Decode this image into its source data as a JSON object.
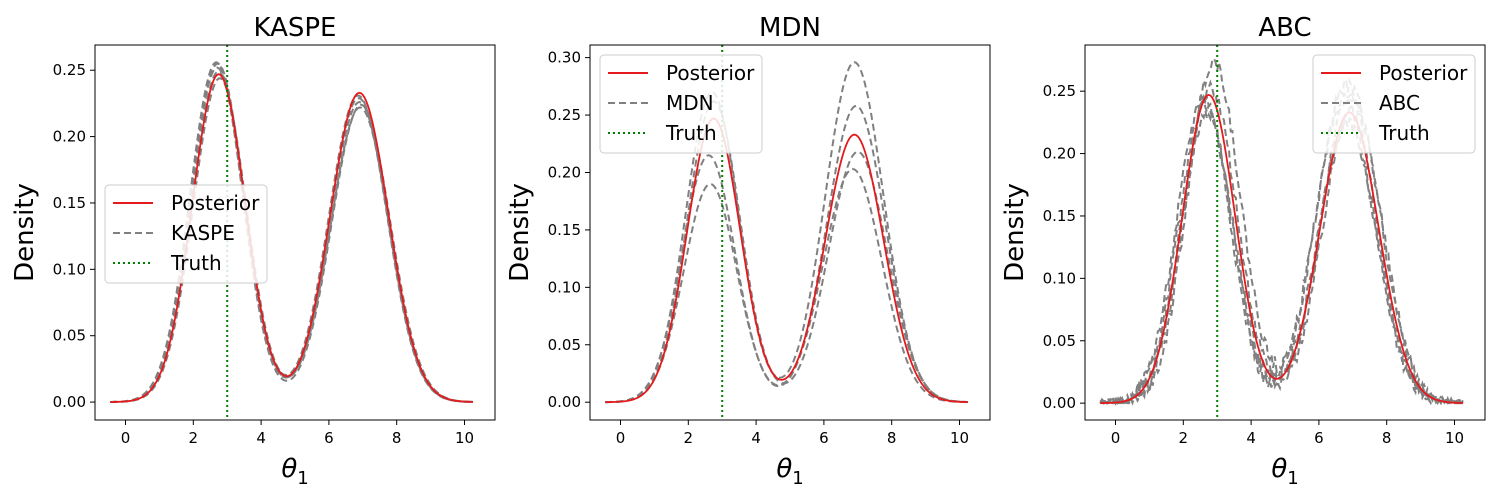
{
  "chart_data": [
    {
      "type": "line",
      "title": "KASPE",
      "xlabel_symbol": "θ",
      "xlabel_subscript": "1",
      "ylabel": "Density",
      "xlim": [
        -0.9,
        10.9
      ],
      "ylim": [
        -0.0135,
        0.269
      ],
      "xticks": [
        0,
        2,
        4,
        6,
        8,
        10
      ],
      "yticks": [
        0.0,
        0.05,
        0.1,
        0.15,
        0.2,
        0.25
      ],
      "ytick_labels": [
        "0.00",
        "0.05",
        "0.10",
        "0.15",
        "0.20",
        "0.25"
      ],
      "truth_x": 3.0,
      "legend": {
        "placement": "center-left",
        "entries": [
          "Posterior",
          "KASPE",
          "Truth"
        ]
      },
      "posterior": {
        "peak1_x": 2.75,
        "peak1_y": 0.247,
        "peak2_x": 6.9,
        "peak2_y": 0.233,
        "dip_x": 4.8,
        "dip_y": 0.022
      },
      "estimates": [
        {
          "peak1_x": 2.72,
          "peak1_y": 0.255,
          "peak2_x": 6.9,
          "peak2_y": 0.226,
          "dip_y": 0.02
        },
        {
          "peak1_x": 2.7,
          "peak1_y": 0.252,
          "peak2_x": 6.88,
          "peak2_y": 0.229,
          "dip_y": 0.024
        },
        {
          "peak1_x": 2.78,
          "peak1_y": 0.244,
          "peak2_x": 6.92,
          "peak2_y": 0.222,
          "dip_y": 0.021
        },
        {
          "peak1_x": 2.68,
          "peak1_y": 0.256,
          "peak2_x": 6.95,
          "peak2_y": 0.224,
          "dip_y": 0.023
        },
        {
          "peak1_x": 2.74,
          "peak1_y": 0.249,
          "peak2_x": 6.86,
          "peak2_y": 0.231,
          "dip_y": 0.019
        }
      ]
    },
    {
      "type": "line",
      "title": "MDN",
      "xlabel_symbol": "θ",
      "xlabel_subscript": "1",
      "ylabel": "Density",
      "xlim": [
        -0.9,
        10.9
      ],
      "ylim": [
        -0.0155,
        0.311
      ],
      "xticks": [
        0,
        2,
        4,
        6,
        8,
        10
      ],
      "yticks": [
        0.0,
        0.05,
        0.1,
        0.15,
        0.2,
        0.25,
        0.3
      ],
      "ytick_labels": [
        "0.00",
        "0.05",
        "0.10",
        "0.15",
        "0.20",
        "0.25",
        "0.30"
      ],
      "truth_x": 3.0,
      "legend": {
        "placement": "top-left",
        "entries": [
          "Posterior",
          "MDN",
          "Truth"
        ]
      },
      "posterior": {
        "peak1_x": 2.75,
        "peak1_y": 0.247,
        "peak2_x": 6.9,
        "peak2_y": 0.233,
        "dip_x": 4.8,
        "dip_y": 0.022
      },
      "estimates": [
        {
          "peak1_x": 2.7,
          "peak1_y": 0.27,
          "peak2_x": 6.9,
          "peak2_y": 0.296,
          "dip_y": 0.018
        },
        {
          "peak1_x": 2.6,
          "peak1_y": 0.215,
          "peak2_x": 6.95,
          "peak2_y": 0.258,
          "dip_y": 0.02
        },
        {
          "peak1_x": 2.65,
          "peak1_y": 0.19,
          "peak2_x": 6.85,
          "peak2_y": 0.203,
          "dip_y": 0.03
        },
        {
          "peak1_x": 2.75,
          "peak1_y": 0.262,
          "peak2_x": 7.0,
          "peak2_y": 0.218,
          "dip_y": 0.024
        }
      ]
    },
    {
      "type": "line",
      "title": "ABC",
      "xlabel_symbol": "θ",
      "xlabel_subscript": "1",
      "ylabel": "Density",
      "xlim": [
        -0.9,
        10.9
      ],
      "ylim": [
        -0.0135,
        0.287
      ],
      "xticks": [
        0,
        2,
        4,
        6,
        8,
        10
      ],
      "yticks": [
        0.0,
        0.05,
        0.1,
        0.15,
        0.2,
        0.25
      ],
      "ytick_labels": [
        "0.00",
        "0.05",
        "0.10",
        "0.15",
        "0.20",
        "0.25"
      ],
      "truth_x": 3.0,
      "legend": {
        "placement": "top-right",
        "entries": [
          "Posterior",
          "ABC",
          "Truth"
        ]
      },
      "posterior": {
        "peak1_x": 2.75,
        "peak1_y": 0.247,
        "peak2_x": 6.9,
        "peak2_y": 0.233,
        "dip_x": 4.8,
        "dip_y": 0.022
      },
      "estimates": [
        {
          "peak1_x": 2.9,
          "peak1_y": 0.274,
          "peak2_x": 6.8,
          "peak2_y": 0.255,
          "dip_y": 0.03
        },
        {
          "peak1_x": 2.6,
          "peak1_y": 0.245,
          "peak2_x": 7.0,
          "peak2_y": 0.24,
          "dip_y": 0.04
        },
        {
          "peak1_x": 2.7,
          "peak1_y": 0.232,
          "peak2_x": 6.85,
          "peak2_y": 0.225,
          "dip_y": 0.015
        },
        {
          "peak1_x": 2.8,
          "peak1_y": 0.252,
          "peak2_x": 6.95,
          "peak2_y": 0.25,
          "dip_y": 0.045
        },
        {
          "peak1_x": 2.65,
          "peak1_y": 0.238,
          "peak2_x": 6.75,
          "peak2_y": 0.245,
          "dip_y": 0.028
        }
      ]
    }
  ],
  "colors": {
    "posterior": "#e41a1c",
    "estimate": "#808080",
    "truth": "#008000"
  }
}
